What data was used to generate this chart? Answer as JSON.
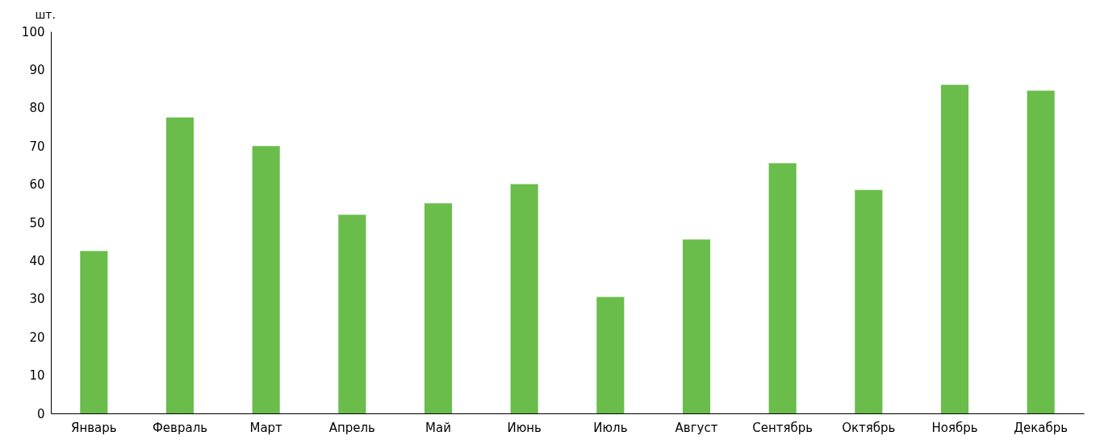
{
  "chart_data": {
    "type": "bar",
    "ylabel": "шт.",
    "categories": [
      "Январь",
      "Февраль",
      "Март",
      "Апрель",
      "Май",
      "Июнь",
      "Июль",
      "Август",
      "Сентябрь",
      "Октябрь",
      "Ноябрь",
      "Декабрь"
    ],
    "values": [
      42.5,
      77.5,
      70,
      52,
      55,
      60,
      30.5,
      45.5,
      65.5,
      58.5,
      86,
      84.5
    ],
    "color": "#6abd4b",
    "ylim": [
      0,
      100
    ],
    "yticks": [
      0,
      10,
      20,
      30,
      40,
      50,
      60,
      70,
      80,
      90,
      100
    ]
  }
}
